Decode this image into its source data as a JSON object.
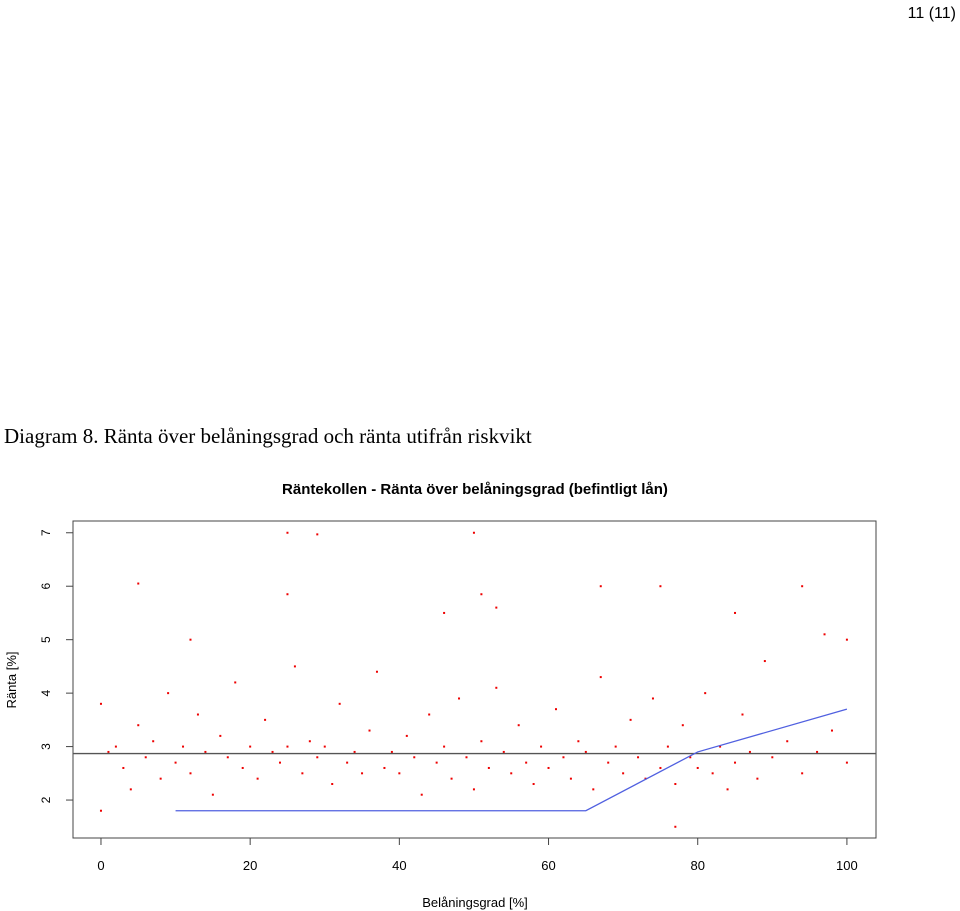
{
  "header": {
    "page": "11 (11)"
  },
  "caption": "Diagram 8. Ränta över belåningsgrad och ränta utifrån riskvikt",
  "chart_data": {
    "type": "scatter",
    "title": "Räntekollen - Ränta över belåningsgrad (befintligt lån)",
    "x_label": "Belåningsgrad [%]",
    "y_label": "Ränta [%]",
    "xlim": [
      -3.75,
      103.9
    ],
    "ylim": [
      1.29,
      7.22
    ],
    "xticks": [
      0,
      20,
      40,
      60,
      80,
      100
    ],
    "yticks": [
      2,
      3,
      4,
      5,
      6,
      7
    ],
    "color": "#ee0000",
    "x": [
      1,
      2,
      3,
      4,
      5,
      6,
      7,
      8,
      9,
      10,
      11,
      12,
      13,
      14,
      15,
      16,
      17,
      18,
      19,
      20,
      21,
      22,
      23,
      24,
      25,
      26,
      27,
      28,
      29,
      30,
      31,
      32,
      33,
      34,
      35,
      36,
      37,
      38,
      39,
      40,
      41,
      42,
      43,
      44,
      45,
      46,
      47,
      48,
      49,
      50,
      51,
      52,
      53,
      54,
      55,
      56,
      57,
      58,
      59,
      60,
      61,
      62,
      63,
      64,
      65,
      66,
      67,
      68,
      69,
      70,
      71,
      72,
      73,
      74,
      75,
      76,
      77,
      78,
      79,
      80,
      81,
      82,
      83,
      84,
      85,
      86,
      87,
      88,
      89,
      90,
      92,
      94,
      96,
      98,
      100,
      5,
      25,
      29,
      50,
      67,
      94,
      25,
      51,
      53,
      46,
      85,
      97,
      100,
      12,
      77,
      0,
      0,
      75
    ],
    "y": [
      2.9,
      3.0,
      2.6,
      2.2,
      3.4,
      2.8,
      3.1,
      2.4,
      4.0,
      2.7,
      3.0,
      2.5,
      3.6,
      2.9,
      2.1,
      3.2,
      2.8,
      4.2,
      2.6,
      3.0,
      2.4,
      3.5,
      2.9,
      2.7,
      3.0,
      4.5,
      2.5,
      3.1,
      2.8,
      3.0,
      2.3,
      3.8,
      2.7,
      2.9,
      2.5,
      3.3,
      4.4,
      2.6,
      2.9,
      2.5,
      3.2,
      2.8,
      2.1,
      3.6,
      2.7,
      3.0,
      2.4,
      3.9,
      2.8,
      2.2,
      3.1,
      2.6,
      4.1,
      2.9,
      2.5,
      3.4,
      2.7,
      2.3,
      3.0,
      2.6,
      3.7,
      2.8,
      2.4,
      3.1,
      2.9,
      2.2,
      4.3,
      2.7,
      3.0,
      2.5,
      3.5,
      2.8,
      2.4,
      3.9,
      2.6,
      3.0,
      2.3,
      3.4,
      2.8,
      2.6,
      4.0,
      2.5,
      3.0,
      2.2,
      2.7,
      3.6,
      2.9,
      2.4,
      4.6,
      2.8,
      3.1,
      2.5,
      2.9,
      3.3,
      2.7,
      6.05,
      7,
      6.97,
      7,
      6,
      6,
      5.85,
      5.85,
      5.6,
      5.5,
      5.5,
      5.1,
      5,
      5,
      1.5,
      3.8,
      1.8,
      6
    ],
    "reference_line": {
      "y": 2.87,
      "color": "#555555"
    },
    "fit_line": {
      "color": "#5060e0",
      "x": [
        10,
        65,
        80,
        100
      ],
      "y": [
        1.8,
        1.8,
        2.9,
        3.7
      ]
    }
  }
}
